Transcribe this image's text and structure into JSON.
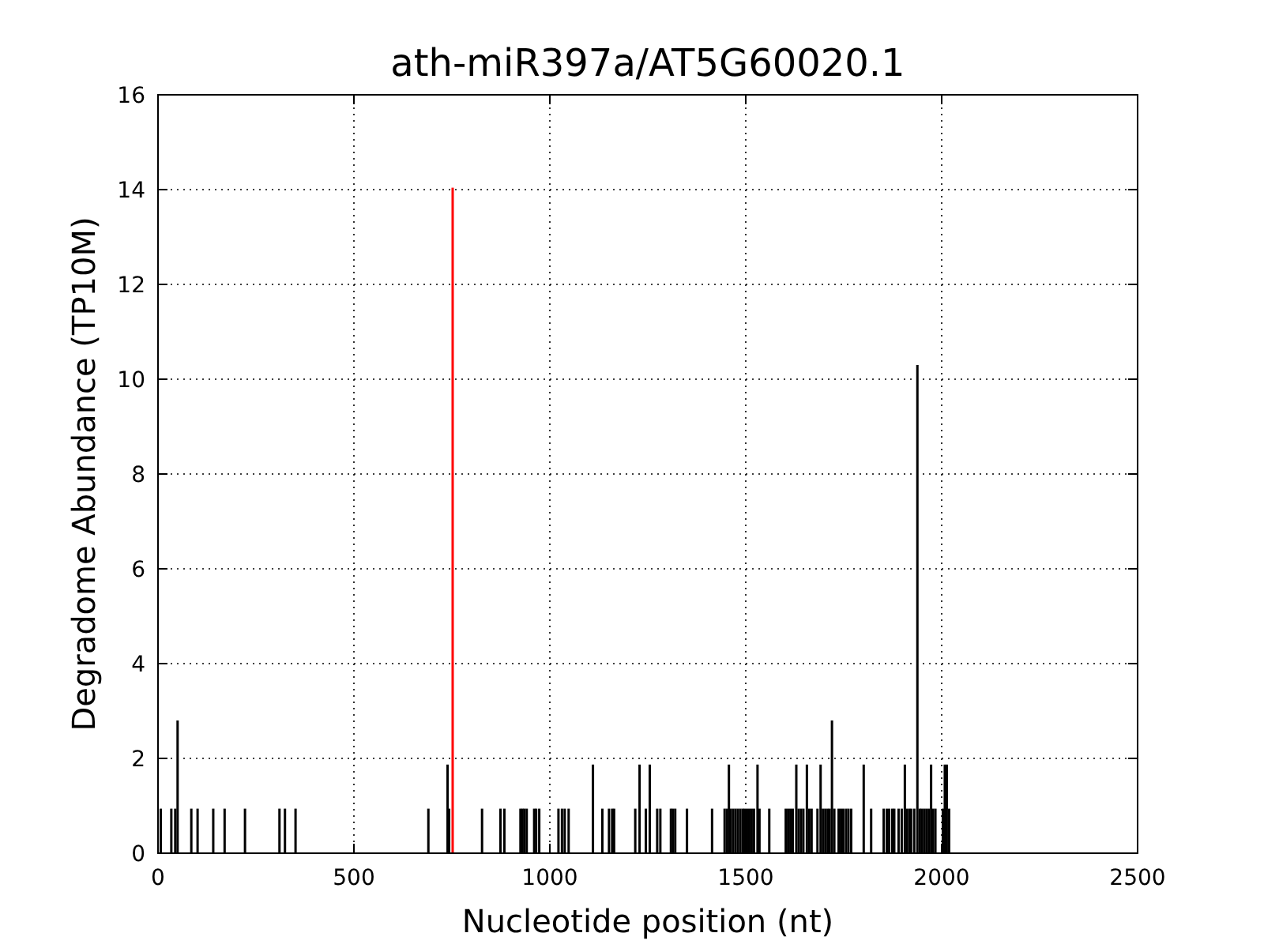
{
  "chart_data": {
    "type": "bar",
    "title": "ath-miR397a/AT5G60020.1",
    "xlabel": "Nucleotide position (nt)",
    "ylabel": "Degradome Abundance (TP10M)",
    "xlim": [
      0,
      2500
    ],
    "xticks": [
      0,
      500,
      1000,
      1500,
      2000,
      2500
    ],
    "ylim": [
      0,
      16
    ],
    "yticks": [
      0,
      2,
      4,
      6,
      8,
      10,
      12,
      14,
      16
    ],
    "grid": true,
    "series": [
      {
        "color": "#000000",
        "x": [
          7,
          34,
          44,
          50,
          85,
          101,
          141,
          170,
          222,
          310,
          324,
          351,
          690,
          739,
          743,
          827,
          874,
          884,
          925,
          930,
          935,
          941,
          960,
          965,
          973,
          1022,
          1031,
          1038,
          1048,
          1110,
          1134,
          1151,
          1159,
          1164,
          1218,
          1229,
          1245,
          1255,
          1274,
          1282,
          1309,
          1314,
          1320,
          1350,
          1414,
          1446,
          1452,
          1457,
          1462,
          1468,
          1474,
          1480,
          1486,
          1492,
          1497,
          1503,
          1509,
          1515,
          1521,
          1530,
          1535,
          1560,
          1602,
          1608,
          1614,
          1620,
          1629,
          1635,
          1641,
          1647,
          1656,
          1662,
          1668,
          1683,
          1691,
          1697,
          1703,
          1709,
          1714,
          1720,
          1726,
          1737,
          1743,
          1749,
          1756,
          1762,
          1769,
          1801,
          1820,
          1852,
          1860,
          1866,
          1874,
          1879,
          1890,
          1898,
          1906,
          1911,
          1917,
          1922,
          1930,
          1938,
          1944,
          1949,
          1955,
          1961,
          1967,
          1973,
          1978,
          1984,
          2003,
          2008,
          2013,
          2019
        ],
        "values": [
          0.94,
          0.94,
          0.94,
          2.8,
          0.94,
          0.94,
          0.94,
          0.94,
          0.94,
          0.94,
          0.94,
          0.94,
          0.94,
          1.87,
          0.94,
          0.94,
          0.94,
          0.94,
          0.94,
          0.94,
          0.94,
          0.94,
          0.94,
          0.94,
          0.94,
          0.94,
          0.94,
          0.94,
          0.94,
          1.87,
          0.94,
          0.94,
          0.94,
          0.94,
          0.94,
          1.87,
          0.94,
          1.87,
          0.94,
          0.94,
          0.94,
          0.94,
          0.94,
          0.94,
          0.94,
          0.94,
          0.94,
          1.87,
          0.94,
          0.94,
          0.94,
          0.94,
          0.94,
          0.94,
          0.94,
          0.94,
          0.94,
          0.94,
          0.94,
          1.87,
          0.94,
          0.94,
          0.94,
          0.94,
          0.94,
          0.94,
          1.87,
          0.94,
          0.94,
          0.94,
          1.87,
          0.94,
          0.94,
          0.94,
          1.87,
          0.94,
          0.94,
          0.94,
          0.94,
          2.8,
          0.94,
          0.94,
          0.94,
          0.94,
          0.94,
          0.94,
          0.94,
          1.87,
          0.94,
          0.94,
          0.94,
          0.94,
          0.94,
          0.94,
          0.94,
          0.94,
          1.87,
          0.94,
          0.94,
          0.94,
          0.94,
          10.3,
          0.94,
          0.94,
          0.94,
          0.94,
          0.94,
          1.87,
          0.94,
          0.94,
          0.94,
          1.87,
          1.87,
          0.94
        ]
      },
      {
        "color": "#ff0000",
        "x": [
          752
        ],
        "values": [
          14.04
        ]
      }
    ]
  }
}
